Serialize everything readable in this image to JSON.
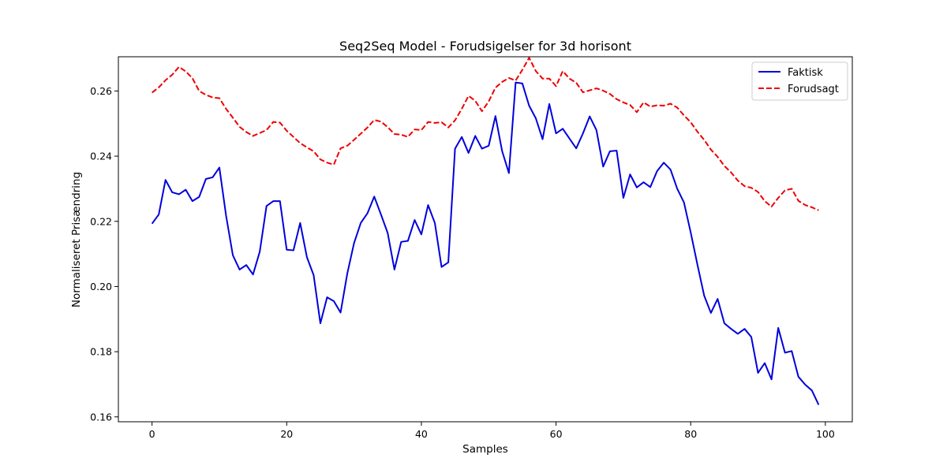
{
  "chart_data": {
    "type": "line",
    "title": "Seq2Seq Model - Forudsigelser for 3d horisont",
    "xlabel": "Samples",
    "ylabel": "Normaliseret Prisændring",
    "xlim": [
      -5.0,
      104.0
    ],
    "ylim": [
      0.1585,
      0.2705
    ],
    "xticks": [
      0,
      20,
      40,
      60,
      80,
      100
    ],
    "yticks": [
      0.16,
      0.18,
      0.2,
      0.22,
      0.24,
      0.26
    ],
    "ytick_labels": [
      "0.16",
      "0.18",
      "0.20",
      "0.22",
      "0.24",
      "0.26"
    ],
    "grid": false,
    "legend": "top-right",
    "series": [
      {
        "name": "Faktisk",
        "color": "#0000dd",
        "style": "solid",
        "values": [
          0.2193,
          0.2221,
          0.2327,
          0.2289,
          0.2283,
          0.2297,
          0.2262,
          0.2275,
          0.233,
          0.2335,
          0.2365,
          0.2217,
          0.2096,
          0.2052,
          0.2066,
          0.2037,
          0.2107,
          0.2247,
          0.2262,
          0.2262,
          0.2113,
          0.2111,
          0.2195,
          0.209,
          0.2035,
          0.1887,
          0.1967,
          0.1955,
          0.192,
          0.204,
          0.2133,
          0.2195,
          0.2225,
          0.2276,
          0.2221,
          0.2164,
          0.2052,
          0.2137,
          0.214,
          0.2204,
          0.216,
          0.225,
          0.2195,
          0.206,
          0.2074,
          0.2423,
          0.2459,
          0.241,
          0.2462,
          0.2423,
          0.2432,
          0.2523,
          0.2415,
          0.2348,
          0.2626,
          0.2623,
          0.2555,
          0.2516,
          0.2452,
          0.256,
          0.247,
          0.2484,
          0.2454,
          0.2424,
          0.247,
          0.2522,
          0.248,
          0.2368,
          0.2415,
          0.2417,
          0.2272,
          0.2344,
          0.2304,
          0.232,
          0.2305,
          0.2354,
          0.238,
          0.2359,
          0.23,
          0.2258,
          0.2166,
          0.2067,
          0.1972,
          0.1919,
          0.1962,
          0.1887,
          0.187,
          0.1855,
          0.187,
          0.1845,
          0.1735,
          0.1765,
          0.1715,
          0.1873,
          0.1797,
          0.1802,
          0.1723,
          0.1699,
          0.1681,
          0.1637
        ]
      },
      {
        "name": "Forudsagt",
        "color": "#ee0000",
        "style": "dashed",
        "values": [
          0.2595,
          0.2611,
          0.2633,
          0.265,
          0.2674,
          0.266,
          0.2639,
          0.26,
          0.2588,
          0.258,
          0.2578,
          0.2545,
          0.2518,
          0.249,
          0.2474,
          0.2462,
          0.2471,
          0.248,
          0.2505,
          0.2503,
          0.2478,
          0.2459,
          0.244,
          0.2427,
          0.2415,
          0.239,
          0.238,
          0.2374,
          0.2424,
          0.2432,
          0.245,
          0.2469,
          0.2488,
          0.2511,
          0.2506,
          0.2489,
          0.2468,
          0.2466,
          0.2459,
          0.2482,
          0.248,
          0.2505,
          0.2502,
          0.2504,
          0.2488,
          0.251,
          0.2545,
          0.2585,
          0.257,
          0.2538,
          0.2568,
          0.261,
          0.2628,
          0.264,
          0.2632,
          0.2665,
          0.2702,
          0.2661,
          0.2638,
          0.2638,
          0.2615,
          0.2661,
          0.2638,
          0.2625,
          0.2596,
          0.2602,
          0.2608,
          0.2601,
          0.2591,
          0.2575,
          0.2565,
          0.2557,
          0.2535,
          0.2565,
          0.2552,
          0.2556,
          0.2555,
          0.2561,
          0.2549,
          0.2525,
          0.2504,
          0.2475,
          0.245,
          0.242,
          0.2398,
          0.237,
          0.235,
          0.2325,
          0.2308,
          0.2303,
          0.229,
          0.2262,
          0.2245,
          0.2272,
          0.2295,
          0.23,
          0.2263,
          0.225,
          0.2243,
          0.2234
        ]
      }
    ]
  }
}
